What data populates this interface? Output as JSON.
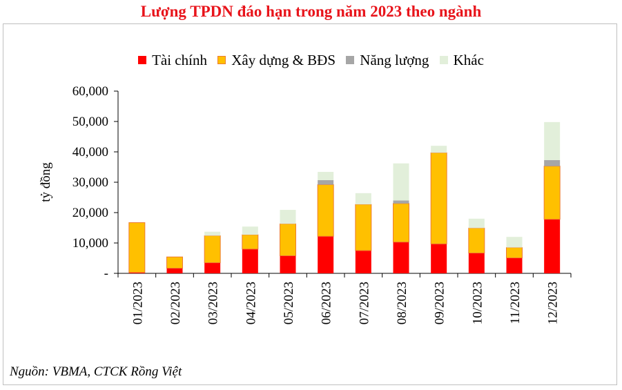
{
  "chart_data": {
    "type": "bar",
    "stacked": true,
    "title": "Lượng TPDN đáo hạn trong năm 2023 theo ngành",
    "ylabel": "tỷ đồng",
    "xlabel": "",
    "ylim": [
      0,
      60000
    ],
    "yticks": [
      "-",
      "10,000",
      "20,000",
      "30,000",
      "40,000",
      "50,000",
      "60,000"
    ],
    "categories": [
      "01/2023",
      "02/2023",
      "03/2023",
      "04/2023",
      "05/2023",
      "06/2023",
      "07/2023",
      "08/2023",
      "09/2023",
      "10/2023",
      "11/2023",
      "12/2023"
    ],
    "legend_position": "top",
    "series": [
      {
        "name": "Tài chính",
        "color": "#ff0000",
        "values": [
          300,
          1700,
          3500,
          8000,
          5800,
          12200,
          7500,
          10300,
          9700,
          6700,
          5100,
          17800
        ]
      },
      {
        "name": "Xây dựng & BĐS",
        "color": "#ffc000",
        "values": [
          16400,
          3700,
          8900,
          4700,
          10500,
          17000,
          15200,
          12700,
          30000,
          8200,
          3400,
          17500
        ]
      },
      {
        "name": "Năng lượng",
        "color": "#a6a6a6",
        "values": [
          0,
          0,
          0,
          0,
          0,
          1500,
          0,
          1000,
          0,
          0,
          0,
          2000
        ]
      },
      {
        "name": "Khác",
        "color": "#e2efda",
        "values": [
          0,
          0,
          1300,
          2700,
          4600,
          2700,
          3700,
          12200,
          2300,
          3100,
          3500,
          12500
        ]
      }
    ],
    "grid": false
  },
  "source": "Nguồn: VBMA, CTCK Rồng Việt"
}
